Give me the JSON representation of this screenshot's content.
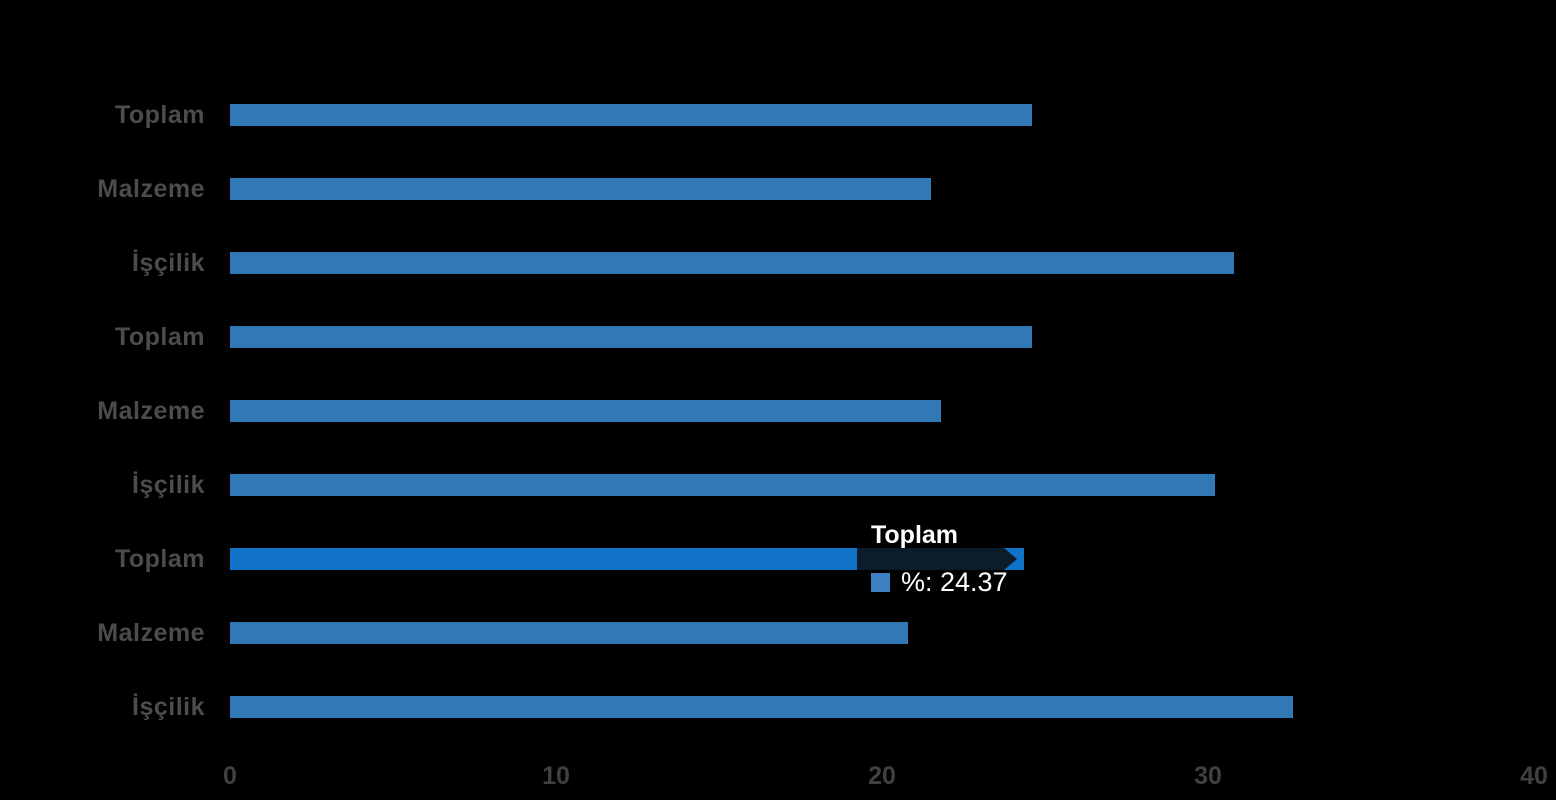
{
  "chart_data": {
    "type": "bar",
    "orientation": "horizontal",
    "title": "",
    "xlabel": "",
    "ylabel": "",
    "xlim": [
      0,
      40
    ],
    "grid": false,
    "rows": [
      {
        "label": "Toplam",
        "value": 24.6,
        "highlighted": false
      },
      {
        "label": "Malzeme",
        "value": 21.5,
        "highlighted": false
      },
      {
        "label": "İşçilik",
        "value": 30.8,
        "highlighted": false
      },
      {
        "label": "Toplam",
        "value": 24.6,
        "highlighted": false
      },
      {
        "label": "Malzeme",
        "value": 21.8,
        "highlighted": false
      },
      {
        "label": "İşçilik",
        "value": 30.2,
        "highlighted": false
      },
      {
        "label": "Toplam",
        "value": 24.37,
        "highlighted": true
      },
      {
        "label": "Malzeme",
        "value": 20.8,
        "highlighted": false
      },
      {
        "label": "İşçilik",
        "value": 32.6,
        "highlighted": false
      }
    ],
    "axis": {
      "ticks": [
        "0",
        "10",
        "20",
        "30",
        "40"
      ],
      "tick_values": [
        0,
        10,
        20,
        30,
        40
      ]
    }
  },
  "tooltip": {
    "title": "Toplam",
    "series": "%",
    "value": 24.37,
    "text": "%: 24.37"
  },
  "colors": {
    "background": "#000000",
    "bar": "#3179b6",
    "bar_highlight": "#1173c8",
    "label": "#4c4c4c",
    "tick": "#404040",
    "tooltip_bg": "#0d1c2b",
    "tooltip_marker": "#3d80c0",
    "tooltip_text": "#ffffff"
  }
}
